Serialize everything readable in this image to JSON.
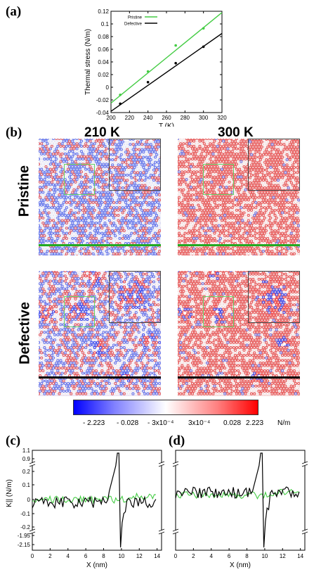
{
  "panels": {
    "a": "(a)",
    "b": "(b)",
    "c": "(c)",
    "d": "(d)"
  },
  "chart_data": [
    {
      "type": "scatter",
      "xlabel": "T (K)",
      "ylabel": "Thermal stress (N/m)",
      "xlim": [
        200,
        320
      ],
      "ylim": [
        -0.04,
        0.12
      ],
      "xticks": [
        "200",
        "220",
        "240",
        "260",
        "280",
        "300",
        "320"
      ],
      "yticks": [
        "-0.04",
        "-0.02",
        "0",
        "0.02",
        "0.04",
        "0.06",
        "0.08",
        "0.1",
        "0.12"
      ],
      "legend_position": "top-left",
      "series": [
        {
          "name": "Pristine",
          "color": "#44cc44",
          "points": [
            [
              210,
              -0.012
            ],
            [
              240,
              0.025
            ],
            [
              270,
              0.066
            ],
            [
              300,
              0.093
            ]
          ],
          "fit": [
            [
              200,
              -0.025
            ],
            [
              320,
              0.118
            ]
          ]
        },
        {
          "name": "Defective",
          "color": "#000000",
          "points": [
            [
              210,
              -0.026
            ],
            [
              240,
              0.008
            ],
            [
              270,
              0.038
            ],
            [
              300,
              0.064
            ]
          ],
          "fit": [
            [
              200,
              -0.038
            ],
            [
              320,
              0.085
            ]
          ]
        }
      ]
    },
    {
      "type": "line",
      "panel": "c",
      "xlabel": "X (nm)",
      "ylabel": "K|| (N/m)",
      "xlim": [
        0,
        14.5
      ],
      "xticks": [
        "0",
        "2",
        "4",
        "6",
        "8",
        "10",
        "12",
        "14"
      ],
      "yticks": [
        "1.1",
        "0.9",
        "0.2",
        "0.1",
        "0",
        "-0.1",
        "-0.2",
        "-1.95",
        "-2.15"
      ],
      "series": [
        {
          "name": "",
          "color": "#000000"
        },
        {
          "name": "",
          "color": "#44cc44"
        }
      ]
    },
    {
      "type": "line",
      "panel": "d",
      "xlabel": "X (nm)",
      "xlim": [
        0,
        14.5
      ],
      "xticks": [
        "0",
        "2",
        "4",
        "6",
        "8",
        "10",
        "12",
        "14"
      ],
      "series": [
        {
          "name": "",
          "color": "#000000"
        },
        {
          "name": "",
          "color": "#44cc44"
        }
      ]
    }
  ],
  "maps": {
    "col_titles": [
      "210 K",
      "300 K"
    ],
    "row_labels": [
      "Pristine",
      "Defective"
    ]
  },
  "colorbar": {
    "ticks": [
      "- 2.223",
      "- 0.028",
      "- 3x10⁻⁴",
      "3x10⁻⁴",
      "0.028",
      "2.223"
    ],
    "unit": "N/m",
    "low_color": "#0000ff",
    "high_color": "#ff0000"
  }
}
